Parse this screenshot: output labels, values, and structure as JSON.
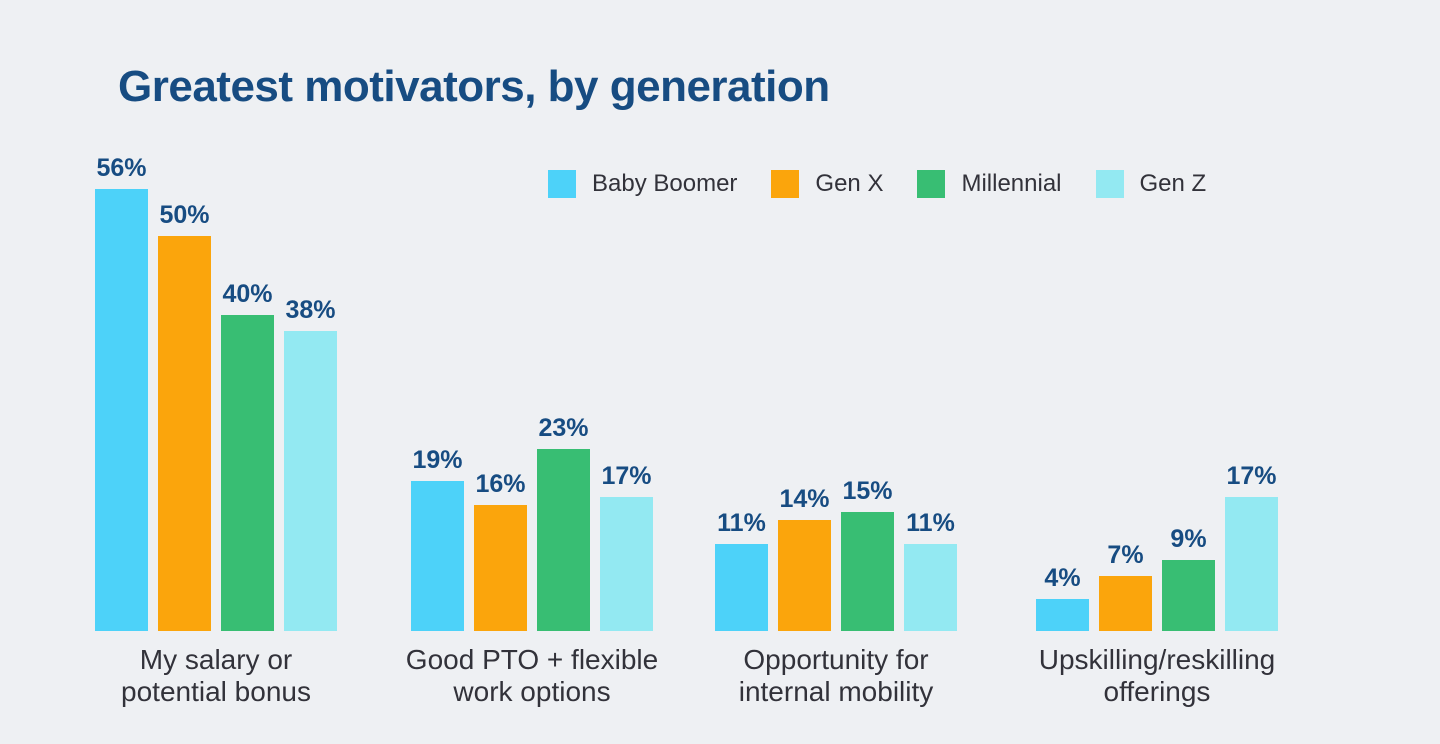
{
  "chart_data": {
    "type": "bar",
    "title": "Greatest motivators, by generation",
    "categories": [
      "My salary or\npotential bonus",
      "Good PTO + flexible\nwork options",
      "Opportunity for\ninternal mobility",
      "Upskilling/reskilling\nofferings"
    ],
    "series": [
      {
        "name": "Baby Boomer",
        "color": "#4DD2F9",
        "values": [
          56,
          19,
          11,
          4
        ]
      },
      {
        "name": "Gen X",
        "color": "#FBA50C",
        "values": [
          50,
          16,
          14,
          7
        ]
      },
      {
        "name": "Millennial",
        "color": "#38BE73",
        "values": [
          40,
          23,
          15,
          9
        ]
      },
      {
        "name": "Gen Z",
        "color": "#93E9F2",
        "values": [
          38,
          17,
          11,
          17
        ]
      }
    ],
    "value_suffix": "%",
    "value_labels": [
      [
        "56%",
        "19%",
        "11%",
        "4%"
      ],
      [
        "50%",
        "16%",
        "14%",
        "7%"
      ],
      [
        "40%",
        "23%",
        "15%",
        "9%"
      ],
      [
        "38%",
        "17%",
        "11%",
        "17%"
      ]
    ],
    "ylim": [
      0,
      60
    ],
    "grid": false,
    "axes_visible": false,
    "legend_position": "top",
    "legend_labels": [
      "Baby Boomer",
      "Gen X",
      "Millennial",
      "Gen Z"
    ]
  },
  "colors": {
    "background": "#EEF0F3",
    "title_text": "#174C82",
    "value_label_text": "#174C82",
    "body_text": "#32323A",
    "baby_boomer": "#4DD2F9",
    "gen_x": "#FBA50C",
    "millennial": "#38BE73",
    "gen_z": "#93E9F2"
  }
}
